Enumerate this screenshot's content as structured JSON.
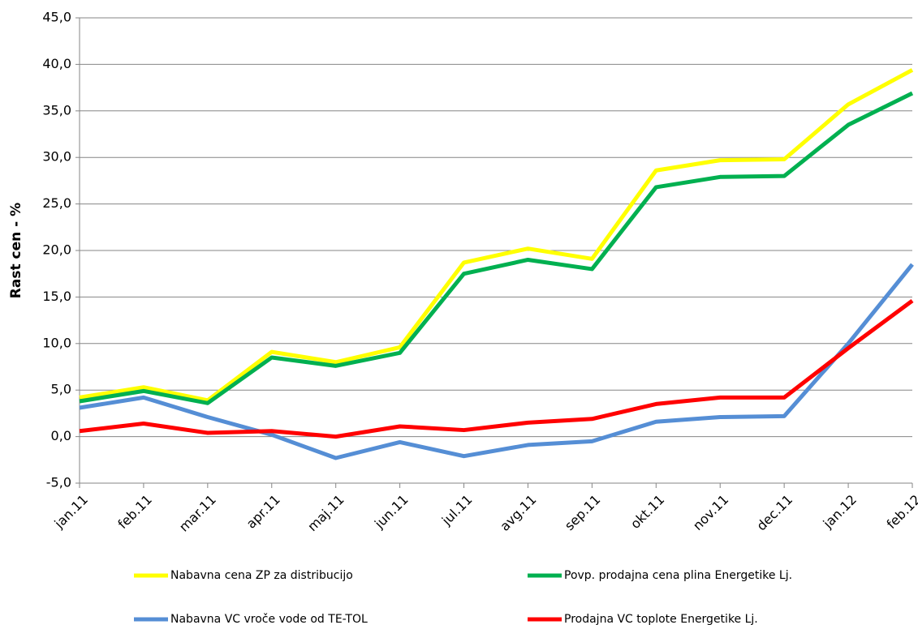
{
  "chart_data": {
    "type": "line",
    "ylabel": "Rast cen - %",
    "categories": [
      "jan.11",
      "feb.11",
      "mar.11",
      "apr.11",
      "maj.11",
      "jun.11",
      "jul.11",
      "avg.11",
      "sep.11",
      "okt.11",
      "nov.11",
      "dec.11",
      "jan.12",
      "feb.12"
    ],
    "series": [
      {
        "name": "Nabavna cena ZP za distribucijo",
        "color": "#ffff00",
        "values": [
          4.2,
          5.3,
          3.9,
          9.1,
          8.0,
          9.6,
          18.7,
          20.2,
          19.1,
          28.6,
          29.7,
          29.8,
          35.7,
          39.4
        ]
      },
      {
        "name": "Povp. prodajna cena plina Energetike Lj.",
        "color": "#00b050",
        "values": [
          3.8,
          4.9,
          3.6,
          8.5,
          7.6,
          9.0,
          17.5,
          19.0,
          18.0,
          26.8,
          27.9,
          28.0,
          33.5,
          36.9
        ]
      },
      {
        "name": "Nabavna VC vroče vode od TE-TOL",
        "color": "#558ed5",
        "values": [
          3.1,
          4.2,
          2.1,
          0.2,
          -2.3,
          -0.6,
          -2.1,
          -0.9,
          -0.5,
          1.6,
          2.1,
          2.2,
          10.0,
          18.5
        ]
      },
      {
        "name": "Prodajna VC toplote Energetike Lj.",
        "color": "#ff0000",
        "values": [
          0.6,
          1.4,
          0.4,
          0.6,
          0.0,
          1.1,
          0.7,
          1.5,
          1.9,
          3.5,
          4.2,
          4.2,
          9.5,
          14.6
        ]
      }
    ],
    "ylim": [
      -5,
      45
    ],
    "yticks": [
      {
        "value": -5,
        "label": "-5,0"
      },
      {
        "value": 0,
        "label": "0,0"
      },
      {
        "value": 5,
        "label": "5,0"
      },
      {
        "value": 10,
        "label": "10,0"
      },
      {
        "value": 15,
        "label": "15,0"
      },
      {
        "value": 20,
        "label": "20,0"
      },
      {
        "value": 25,
        "label": "25,0"
      },
      {
        "value": 30,
        "label": "30,0"
      },
      {
        "value": 35,
        "label": "35,0"
      },
      {
        "value": 40,
        "label": "40,0"
      },
      {
        "value": 45,
        "label": "45,0"
      }
    ],
    "grid": true
  }
}
